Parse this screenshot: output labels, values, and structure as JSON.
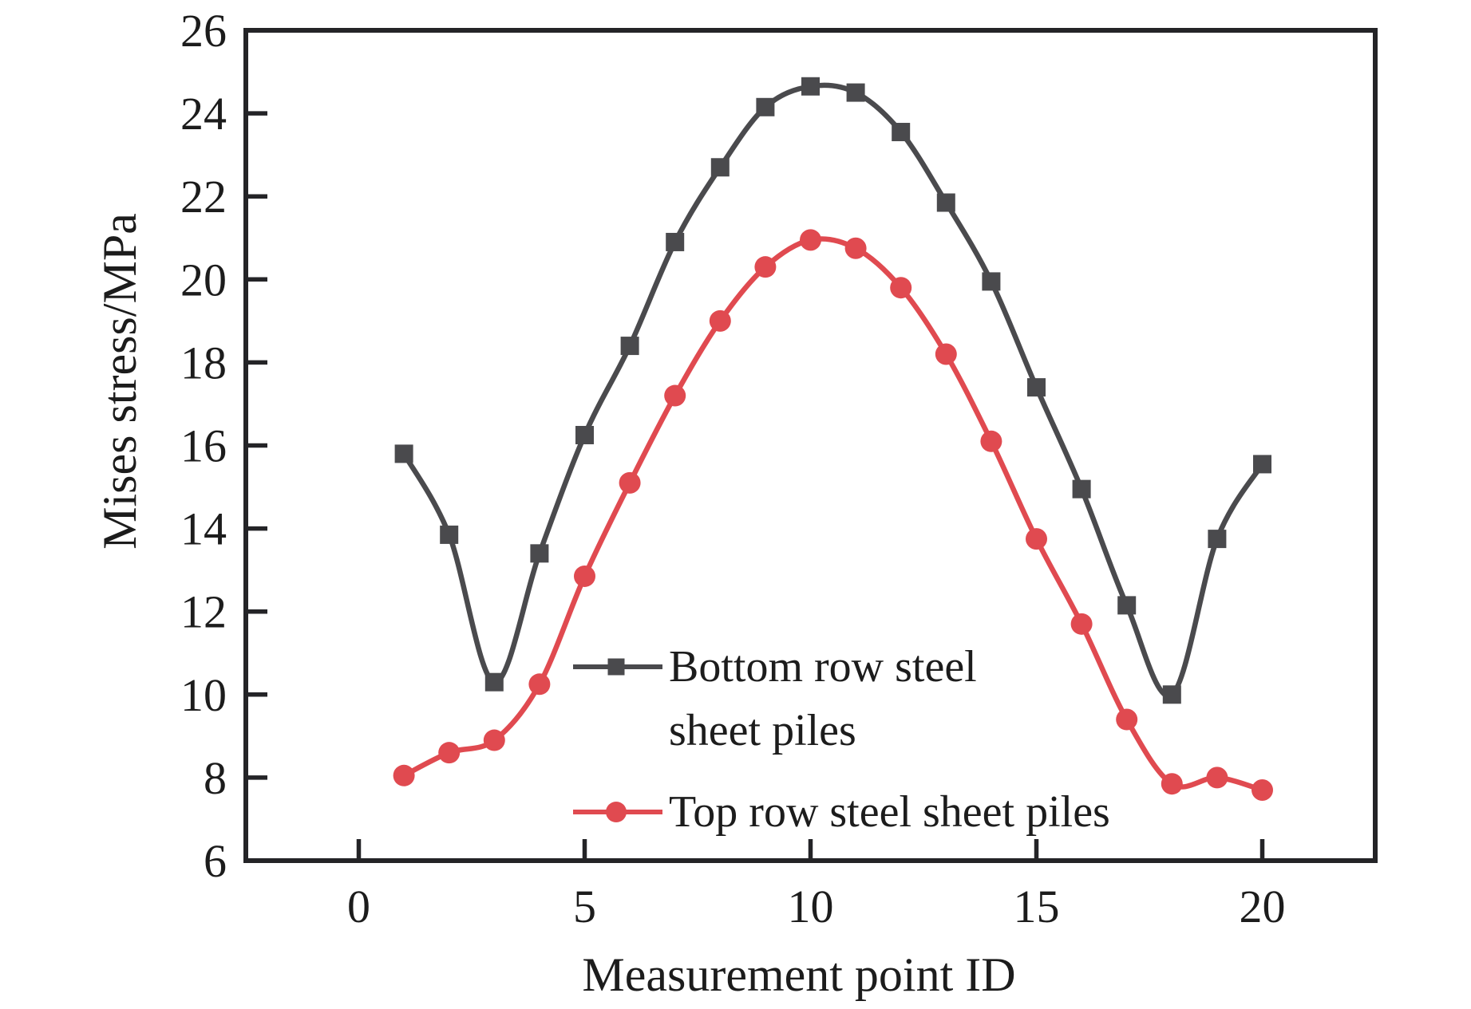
{
  "chart_data": {
    "type": "line",
    "title": "",
    "xlabel": "Measurement point ID",
    "ylabel": "Mises stress/MPa",
    "x": [
      1,
      2,
      3,
      4,
      5,
      6,
      7,
      8,
      9,
      10,
      11,
      12,
      13,
      14,
      15,
      16,
      17,
      18,
      19,
      20
    ],
    "series": [
      {
        "name": "Bottom row steel sheet piles",
        "legend_lines": [
          "Bottom row steel",
          "sheet piles"
        ],
        "color": "#4a4a4d",
        "marker": "square",
        "values": [
          15.8,
          13.85,
          10.3,
          13.4,
          16.25,
          18.4,
          20.9,
          22.7,
          24.15,
          24.65,
          24.5,
          23.55,
          21.85,
          19.95,
          17.4,
          14.95,
          12.15,
          10.0,
          13.75,
          15.55
        ]
      },
      {
        "name": "Top row steel sheet piles",
        "legend_lines": [
          "Top row steel sheet piles"
        ],
        "color": "#e04a50",
        "marker": "circle",
        "values": [
          8.05,
          8.6,
          8.9,
          10.25,
          12.85,
          15.1,
          17.2,
          19.0,
          20.3,
          20.95,
          20.75,
          19.8,
          18.2,
          16.1,
          13.75,
          11.7,
          9.4,
          7.85,
          8.0,
          7.7
        ]
      }
    ],
    "xlim": [
      -2.5,
      22.5
    ],
    "ylim": [
      6,
      26
    ],
    "x_ticks": [
      "0",
      "5",
      "10",
      "15",
      "20"
    ],
    "x_tick_values": [
      0,
      5,
      10,
      15,
      20
    ],
    "y_ticks": [
      "6",
      "8",
      "10",
      "12",
      "14",
      "16",
      "18",
      "20",
      "22",
      "24",
      "26"
    ],
    "y_tick_values": [
      6,
      8,
      10,
      12,
      14,
      16,
      18,
      20,
      22,
      24,
      26
    ],
    "grid": false,
    "legend_position": "inside bottom-center"
  },
  "colors": {
    "axis": "#242427",
    "text": "#1c1c1c",
    "background": "#ffffff"
  }
}
